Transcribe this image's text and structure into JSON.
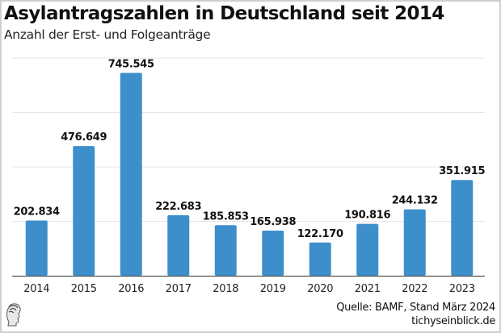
{
  "header": {
    "title": "Asylantragszahlen in Deutschland seit 2014",
    "subtitle": "Anzahl der Erst- und Folgeanträge"
  },
  "footer": {
    "source": "Quelle: BAMF, Stand März 2024",
    "site": "tichyseinblick.de",
    "logo_icon": "greek-head-logo-icon"
  },
  "colors": {
    "bar": "#3d8fcc",
    "grid": "#e6e6e6",
    "axis": "#555555"
  },
  "chart_data": {
    "type": "bar",
    "title": "Asylantragszahlen in Deutschland seit 2014",
    "subtitle": "Anzahl der Erst- und Folgeanträge",
    "xlabel": "",
    "ylabel": "",
    "categories": [
      "2014",
      "2015",
      "2016",
      "2017",
      "2018",
      "2019",
      "2020",
      "2021",
      "2022",
      "2023"
    ],
    "values": [
      202834,
      476649,
      745545,
      222683,
      185853,
      165938,
      122170,
      190816,
      244132,
      351915
    ],
    "labels": [
      "202.834",
      "476.649",
      "745.545",
      "222.683",
      "185.853",
      "165.938",
      "122.170",
      "190.816",
      "244.132",
      "351.915"
    ],
    "ylim": [
      0,
      800000
    ],
    "gridlines": [
      0,
      200000,
      400000,
      600000,
      800000
    ],
    "grid": true,
    "y_tick_labels_visible": false,
    "legend": "none"
  }
}
